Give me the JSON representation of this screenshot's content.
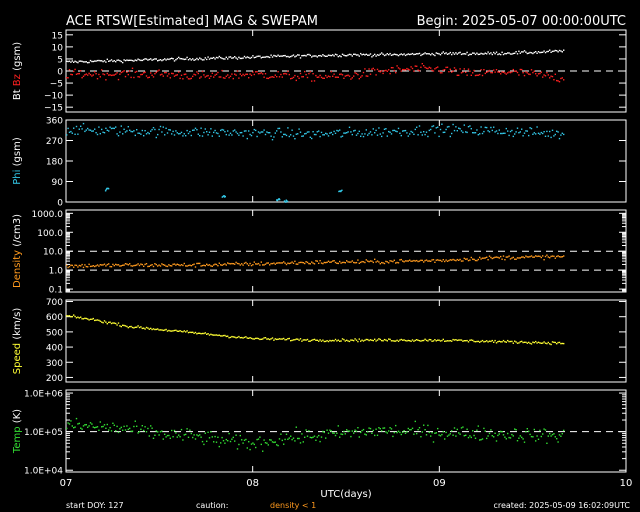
{
  "header": {
    "title": "ACE RTSW[Estimated] MAG & SWEPAM",
    "begin": "Begin: 2025-05-07 00:00:00UTC"
  },
  "footer": {
    "start_doy": "start DOY: 127",
    "caution": "caution:",
    "density_note": "density < 1",
    "created": "created: 2025-05-09 16:02:09UTC"
  },
  "colors": {
    "background": "#000000",
    "frame": "#ffffff",
    "bt": "#ffffff",
    "bz": "#ff2020",
    "phi": "#33c8e8",
    "density": "#ff9a1e",
    "speed": "#ffff33",
    "temp": "#33e033",
    "density_note": "#ff9a1e"
  },
  "chart_data": {
    "type": "scatter",
    "x_axis": {
      "label": "UTC(days)",
      "ticks": [
        "07",
        "08",
        "09",
        "10"
      ],
      "range": [
        "2025-05-07 00:00",
        "2025-05-10 00:00"
      ],
      "data_end": "2025-05-09 16:00"
    },
    "panels": [
      {
        "id": "mag",
        "ylabel_parts": [
          {
            "text": "Bt",
            "color": "#ffffff"
          },
          {
            "text": "Bz",
            "color": "#ff2020"
          },
          {
            "text": "(gsm)",
            "color": "#ffffff"
          }
        ],
        "ylim": [
          -17,
          17
        ],
        "ticks": [
          15,
          10,
          5,
          0,
          -5,
          -10,
          -15
        ],
        "tick_labels": [
          "15",
          "10",
          "5",
          "0",
          "−5",
          "−10",
          "−15"
        ],
        "dashed_refs": [
          0
        ],
        "series": [
          {
            "name": "Bt",
            "color": "#ffffff",
            "time_hours": [
              0,
              6,
              12,
              18,
              24,
              30,
              36,
              42,
              48,
              54,
              60,
              64
            ],
            "values": [
              4,
              4.5,
              5,
              5.5,
              6,
              6.5,
              7,
              7,
              7.5,
              7.5,
              8,
              8.5
            ],
            "noise": 0.6
          },
          {
            "name": "Bz",
            "color": "#ff2020",
            "time_hours": [
              0,
              6,
              12,
              18,
              24,
              30,
              36,
              40,
              44,
              48,
              52,
              56,
              60,
              64
            ],
            "values": [
              -1,
              -1,
              -1,
              -2,
              -1,
              -2,
              -2,
              0,
              1,
              1,
              -1,
              0,
              -1,
              -3
            ],
            "noise": 1.8
          }
        ]
      },
      {
        "id": "phi",
        "ylabel_parts": [
          {
            "text": "Phi",
            "color": "#33c8e8"
          },
          {
            "text": "(gsm)",
            "color": "#ffffff"
          }
        ],
        "ylim": [
          0,
          360
        ],
        "ticks": [
          360,
          270,
          180,
          90,
          0
        ],
        "tick_labels": [
          "360",
          "270",
          "180",
          "90",
          "0"
        ],
        "dashed_refs": [],
        "series": [
          {
            "name": "Phi",
            "color": "#33c8e8",
            "time_hours": [
              0,
              8,
              16,
              24,
              32,
              40,
              48,
              56,
              64
            ],
            "values": [
              320,
              315,
              310,
              305,
              300,
              310,
              320,
              315,
              300
            ],
            "noise": 22,
            "outliers": [
              {
                "time_hours": 27,
                "value": 15
              },
              {
                "time_hours": 28,
                "value": 10
              },
              {
                "time_hours": 35,
                "value": 50
              },
              {
                "time_hours": 5,
                "value": 60
              },
              {
                "time_hours": 20,
                "value": 30
              }
            ]
          }
        ]
      },
      {
        "id": "density",
        "ylabel_parts": [
          {
            "text": "Density",
            "color": "#ff9a1e"
          },
          {
            "text": "(/cm3)",
            "color": "#ffffff"
          }
        ],
        "scale": "log",
        "ylim": [
          0.07,
          1500
        ],
        "ticks": [
          1000,
          100,
          10,
          1,
          0.1
        ],
        "tick_labels": [
          "1000.0",
          "100.0",
          "10.0",
          "1.0",
          "0.1"
        ],
        "dashed_refs": [
          10,
          1
        ],
        "series": [
          {
            "name": "Density",
            "color": "#ff9a1e",
            "time_hours": [
              0,
              8,
              16,
              24,
              32,
              40,
              48,
              56,
              64
            ],
            "values": [
              1.8,
              2.0,
              2.0,
              2.3,
              2.8,
              3.0,
              3.5,
              5.0,
              5.5
            ],
            "noise_log": 0.1
          }
        ]
      },
      {
        "id": "speed",
        "ylabel_parts": [
          {
            "text": "Speed",
            "color": "#ffff33"
          },
          {
            "text": "(km/s)",
            "color": "#ffffff"
          }
        ],
        "ylim": [
          170,
          710
        ],
        "ticks": [
          700,
          600,
          500,
          400,
          300,
          200
        ],
        "tick_labels": [
          "700",
          "600",
          "500",
          "400",
          "300",
          "200"
        ],
        "dashed_refs": [],
        "series": [
          {
            "name": "Speed",
            "color": "#ffff33",
            "time_hours": [
              0,
              4,
              8,
              12,
              16,
              20,
              24,
              32,
              40,
              48,
              56,
              64
            ],
            "values": [
              610,
              580,
              540,
              520,
              500,
              480,
              460,
              450,
              450,
              450,
              440,
              430
            ],
            "noise": 8
          }
        ]
      },
      {
        "id": "temp",
        "ylabel_parts": [
          {
            "text": "Temp",
            "color": "#33e033"
          },
          {
            "text": "(K)",
            "color": "#ffffff"
          }
        ],
        "scale": "log",
        "ylim": [
          9000,
          1200000
        ],
        "ticks": [
          1000000,
          100000,
          10000
        ],
        "tick_labels": [
          "1.0E+06",
          "1.0E+05",
          "1.0E+04"
        ],
        "dashed_refs": [
          100000
        ],
        "series": [
          {
            "name": "Temp",
            "color": "#33e033",
            "time_hours": [
              0,
              4,
              8,
              12,
              16,
              20,
              24,
              28,
              32,
              40,
              48,
              56,
              64
            ],
            "values": [
              150000,
              140000,
              120000,
              90000,
              80000,
              60000,
              50000,
              70000,
              80000,
              110000,
              100000,
              90000,
              80000
            ],
            "noise_log": 0.18
          }
        ]
      }
    ]
  }
}
